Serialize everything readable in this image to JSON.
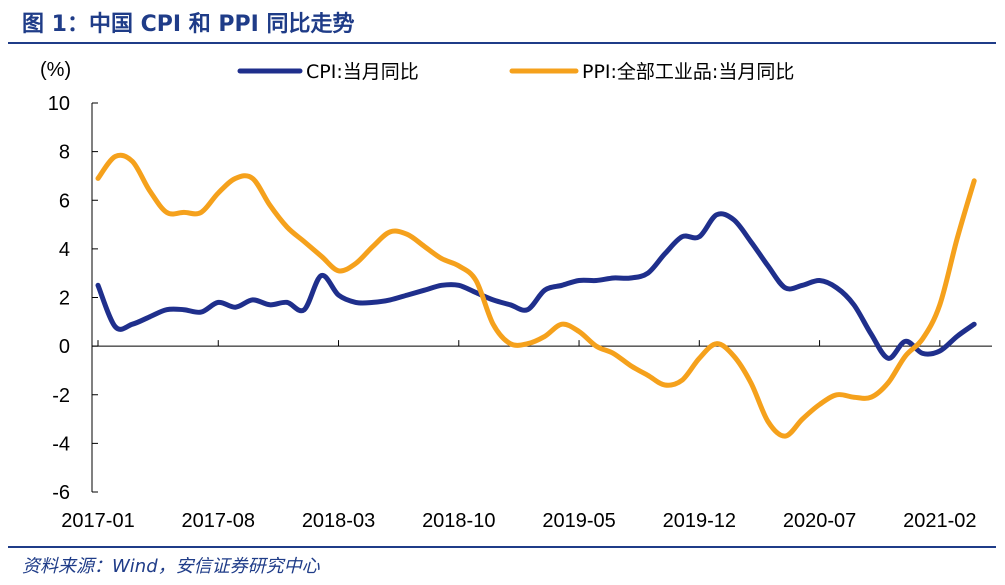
{
  "figure": {
    "title": "图 1：中国 CPI 和 PPI 同比走势",
    "source": "资料来源：Wind，安信证券研究中心"
  },
  "chart_data": {
    "type": "line",
    "ylabel": "(%)",
    "ylim": [
      -6,
      10
    ],
    "yticks": [
      10,
      8,
      6,
      4,
      2,
      0,
      -2,
      -4,
      -6
    ],
    "x_tick_labels": [
      "2017-01",
      "2017-08",
      "2018-03",
      "2018-10",
      "2019-05",
      "2019-12",
      "2020-07",
      "2021-02"
    ],
    "x": [
      "2017-01",
      "2017-02",
      "2017-03",
      "2017-04",
      "2017-05",
      "2017-06",
      "2017-07",
      "2017-08",
      "2017-09",
      "2017-10",
      "2017-11",
      "2017-12",
      "2018-01",
      "2018-02",
      "2018-03",
      "2018-04",
      "2018-05",
      "2018-06",
      "2018-07",
      "2018-08",
      "2018-09",
      "2018-10",
      "2018-11",
      "2018-12",
      "2019-01",
      "2019-02",
      "2019-03",
      "2019-04",
      "2019-05",
      "2019-06",
      "2019-07",
      "2019-08",
      "2019-09",
      "2019-10",
      "2019-11",
      "2019-12",
      "2020-01",
      "2020-02",
      "2020-03",
      "2020-04",
      "2020-05",
      "2020-06",
      "2020-07",
      "2020-08",
      "2020-09",
      "2020-10",
      "2020-11",
      "2020-12",
      "2021-01",
      "2021-02",
      "2021-03",
      "2021-04"
    ],
    "legend_position": "top",
    "series": [
      {
        "name": "CPI:当月同比",
        "color": "#1f2f8c",
        "values": [
          2.5,
          0.8,
          0.9,
          1.2,
          1.5,
          1.5,
          1.4,
          1.8,
          1.6,
          1.9,
          1.7,
          1.8,
          1.5,
          2.9,
          2.1,
          1.8,
          1.8,
          1.9,
          2.1,
          2.3,
          2.5,
          2.5,
          2.2,
          1.9,
          1.7,
          1.5,
          2.3,
          2.5,
          2.7,
          2.7,
          2.8,
          2.8,
          3.0,
          3.8,
          4.5,
          4.5,
          5.4,
          5.2,
          4.3,
          3.3,
          2.4,
          2.5,
          2.7,
          2.4,
          1.7,
          0.5,
          -0.5,
          0.2,
          -0.3,
          -0.2,
          0.4,
          0.9
        ]
      },
      {
        "name": "PPI:全部工业品:当月同比",
        "color": "#f5a11c",
        "values": [
          6.9,
          7.8,
          7.6,
          6.4,
          5.5,
          5.5,
          5.5,
          6.3,
          6.9,
          6.9,
          5.8,
          4.9,
          4.3,
          3.7,
          3.1,
          3.4,
          4.1,
          4.7,
          4.6,
          4.1,
          3.6,
          3.3,
          2.7,
          0.9,
          0.1,
          0.1,
          0.4,
          0.9,
          0.6,
          0.0,
          -0.3,
          -0.8,
          -1.2,
          -1.6,
          -1.4,
          -0.5,
          0.1,
          -0.4,
          -1.5,
          -3.1,
          -3.7,
          -3.0,
          -2.4,
          -2.0,
          -2.1,
          -2.1,
          -1.5,
          -0.4,
          0.3,
          1.7,
          4.4,
          6.8
        ]
      }
    ]
  }
}
